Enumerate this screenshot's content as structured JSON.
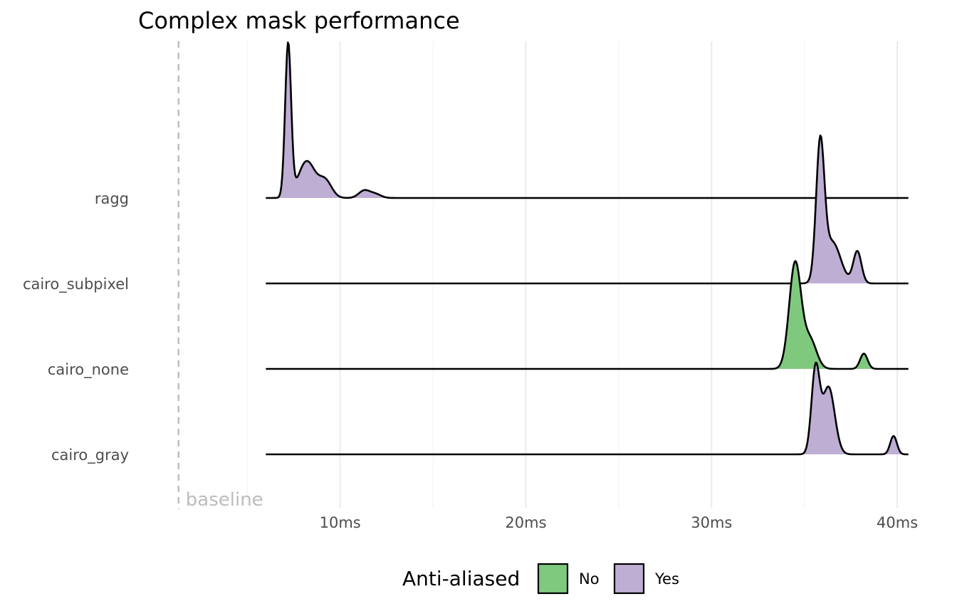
{
  "chart_data": {
    "type": "ridgeline",
    "title": "Complex mask performance",
    "xlabel": "",
    "ylabel": "",
    "x_ticks": [
      {
        "value": 10,
        "label": "10ms"
      },
      {
        "value": 20,
        "label": "20ms"
      },
      {
        "value": 30,
        "label": "30ms"
      },
      {
        "value": 40,
        "label": "40ms"
      }
    ],
    "x_minor": [
      5,
      15,
      25,
      35
    ],
    "xlim": [
      -0.8,
      41.3
    ],
    "density_range": [
      6,
      40.6
    ],
    "annotation": {
      "value": 1.3,
      "label": "baseline"
    },
    "legend": {
      "title": "Anti-aliased",
      "position": "bottom",
      "entries": [
        {
          "label": "No",
          "color": "#7fc97f"
        },
        {
          "label": "Yes",
          "color": "#beaed4"
        }
      ]
    },
    "series": [
      {
        "name": "ragg",
        "anti_aliased": "Yes",
        "color": "#beaed4",
        "peaks": [
          [
            7.2,
            0.16,
            1.0
          ],
          [
            8.2,
            0.45,
            0.24
          ],
          [
            9.2,
            0.35,
            0.11
          ],
          [
            11.3,
            0.3,
            0.048
          ],
          [
            11.9,
            0.3,
            0.025
          ]
        ]
      },
      {
        "name": "cairo_subpixel",
        "anti_aliased": "Yes",
        "color": "#beaed4",
        "peaks": [
          [
            35.85,
            0.22,
            0.87
          ],
          [
            36.5,
            0.45,
            0.27
          ],
          [
            37.85,
            0.22,
            0.21
          ]
        ]
      },
      {
        "name": "cairo_none",
        "anti_aliased": "No",
        "color": "#7fc97f",
        "peaks": [
          [
            34.5,
            0.32,
            0.69
          ],
          [
            35.3,
            0.35,
            0.19
          ],
          [
            38.2,
            0.2,
            0.1
          ]
        ]
      },
      {
        "name": "cairo_gray",
        "anti_aliased": "Yes",
        "color": "#beaed4",
        "peaks": [
          [
            35.6,
            0.22,
            0.55
          ],
          [
            36.3,
            0.33,
            0.44
          ],
          [
            39.8,
            0.18,
            0.12
          ]
        ]
      }
    ]
  }
}
